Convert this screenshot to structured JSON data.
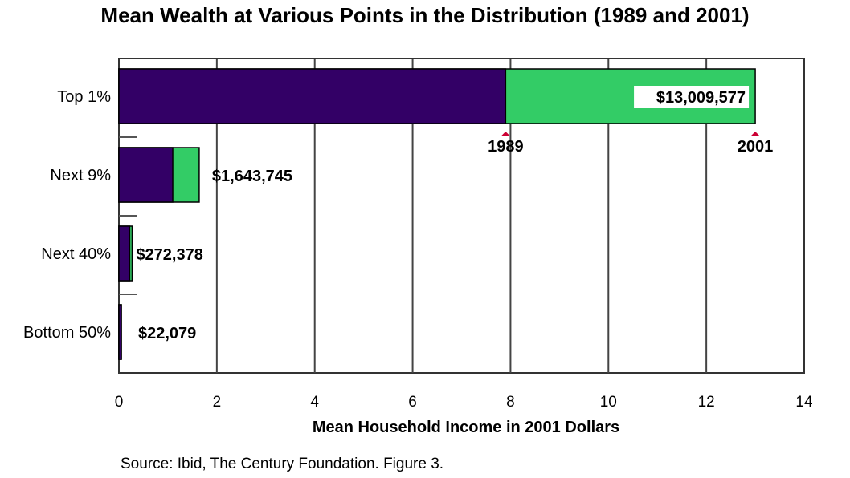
{
  "chart_data": {
    "type": "bar",
    "orientation": "horizontal",
    "stacked_overlay": true,
    "title": "Mean Wealth at Various Points in the Distribution (1989 and 2001)",
    "xlabel": "Mean Household Income in 2001 Dollars",
    "ylabel": "",
    "xlim": [
      0,
      14
    ],
    "x_ticks": [
      0,
      2,
      4,
      6,
      8,
      10,
      12,
      14
    ],
    "grid": "vertical",
    "categories": [
      "Top 1%",
      "Next 9%",
      "Next 40%",
      "Bottom 50%"
    ],
    "series": [
      {
        "name": "1989",
        "color": "#330066",
        "values": [
          7.9,
          1.1,
          0.22,
          0.02
        ]
      },
      {
        "name": "2001",
        "color": "#33cc66",
        "values": [
          13.0,
          1.64,
          0.27,
          0.022
        ]
      }
    ],
    "data_labels": [
      "$13,009,577",
      "$1,643,745",
      "$272,378",
      "$22,079"
    ],
    "markers": [
      {
        "label": "1989",
        "value": 7.9,
        "color": "#cc0033"
      },
      {
        "label": "2001",
        "value": 13.0,
        "color": "#cc0033"
      }
    ]
  },
  "source": "Source: Ibid, The Century Foundation. Figure 3."
}
